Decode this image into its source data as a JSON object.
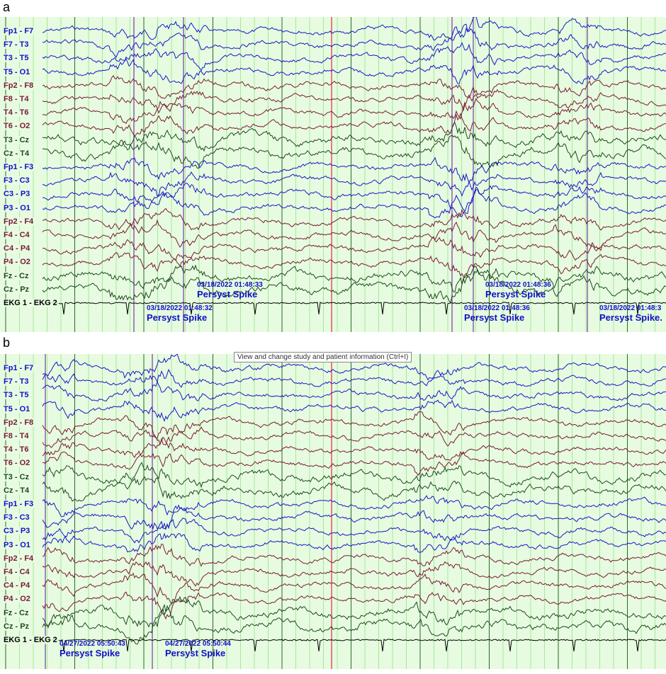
{
  "panels": [
    {
      "letter": "a",
      "channels": [
        {
          "label": "Fp1 - F7",
          "color": "blue"
        },
        {
          "label": "F7 - T3",
          "color": "blue"
        },
        {
          "label": "T3 - T5",
          "color": "blue"
        },
        {
          "label": "T5 - O1",
          "color": "blue"
        },
        {
          "label": "Fp2 - F8",
          "color": "red"
        },
        {
          "label": "F8 - T4",
          "color": "red"
        },
        {
          "label": "T4 - T6",
          "color": "red"
        },
        {
          "label": "T6 - O2",
          "color": "red"
        },
        {
          "label": "T3 - Cz",
          "color": "green"
        },
        {
          "label": "Cz - T4",
          "color": "green"
        },
        {
          "label": "Fp1 - F3",
          "color": "blue"
        },
        {
          "label": "F3 - C3",
          "color": "blue"
        },
        {
          "label": "C3 - P3",
          "color": "blue"
        },
        {
          "label": "P3 - O1",
          "color": "blue"
        },
        {
          "label": "Fp2 - F4",
          "color": "red"
        },
        {
          "label": "F4 - C4",
          "color": "red"
        },
        {
          "label": "C4 - P4",
          "color": "red"
        },
        {
          "label": "P4 - O2",
          "color": "red"
        },
        {
          "label": "Fz - Cz",
          "color": "green"
        },
        {
          "label": "Cz - Pz",
          "color": "green"
        },
        {
          "label": "EKG 1 - EKG 2",
          "color": "black"
        }
      ],
      "annotations": [
        {
          "time": "03/18/2022 01:48:33",
          "label": "Persyst Spike"
        },
        {
          "time": "03/18/2022 01:48:32",
          "label": "Persyst Spike"
        },
        {
          "time": "03/18/2022 01:48:36",
          "label": "Persyst Spike"
        },
        {
          "time": "03/18/2022 01:48:36",
          "label": "Persyst Spike"
        },
        {
          "time": "03/18/2022 01:48:3",
          "label": "Persyst Spike."
        }
      ]
    },
    {
      "letter": "b",
      "channels": [
        {
          "label": "Fp1 - F7",
          "color": "blue"
        },
        {
          "label": "F7 - T3",
          "color": "blue"
        },
        {
          "label": "T3 - T5",
          "color": "blue"
        },
        {
          "label": "T5 - O1",
          "color": "blue"
        },
        {
          "label": "Fp2 - F8",
          "color": "red"
        },
        {
          "label": "F8 - T4",
          "color": "red"
        },
        {
          "label": "T4 - T6",
          "color": "red"
        },
        {
          "label": "T6 - O2",
          "color": "red"
        },
        {
          "label": "T3 - Cz",
          "color": "green"
        },
        {
          "label": "Cz - T4",
          "color": "green"
        },
        {
          "label": "Fp1 - F3",
          "color": "blue"
        },
        {
          "label": "F3 - C3",
          "color": "blue"
        },
        {
          "label": "C3 - P3",
          "color": "blue"
        },
        {
          "label": "P3 - O1",
          "color": "blue"
        },
        {
          "label": "Fp2 - F4",
          "color": "red"
        },
        {
          "label": "F4 - C4",
          "color": "red"
        },
        {
          "label": "C4 - P4",
          "color": "red"
        },
        {
          "label": "P4 - O2",
          "color": "red"
        },
        {
          "label": "Fz - Cz",
          "color": "green"
        },
        {
          "label": "Cz - Pz",
          "color": "green"
        },
        {
          "label": "EKG 1 - EKG 2",
          "color": "black"
        }
      ],
      "annotations": [
        {
          "time": "04/27/2022 05:50:43",
          "label": "Persyst Spike"
        },
        {
          "time": "04/27/2022 05:50:44",
          "label": "Persyst Spike"
        }
      ],
      "tooltip": "View and change study and patient information (Ctrl+I)"
    }
  ],
  "colors": {
    "blue": "#1818c8",
    "red": "#7a1a35",
    "green": "#1f4a1f",
    "black": "#000000",
    "grid": "#a6e89a",
    "background": "#e6fbe0",
    "cursor": "#e03030",
    "marker": "#7a3aa0"
  },
  "chart_data": {
    "type": "line",
    "title": "",
    "series": []
  }
}
